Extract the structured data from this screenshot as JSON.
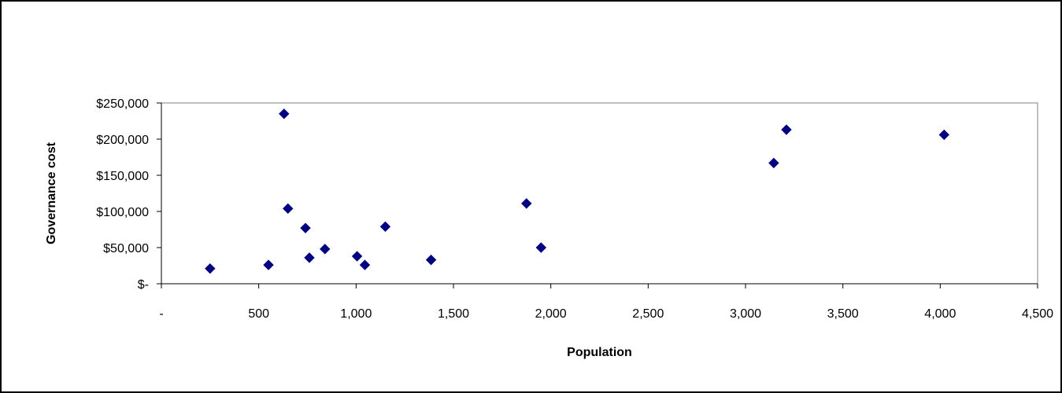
{
  "chart_data": {
    "type": "scatter",
    "xlabel": "Population",
    "ylabel": "Governance cost",
    "xlim": [
      0,
      4500
    ],
    "ylim": [
      0,
      250000
    ],
    "x_ticks": [
      0,
      500,
      1000,
      1500,
      2000,
      2500,
      3000,
      3500,
      4000,
      4500
    ],
    "x_tick_labels": [
      "-",
      "500",
      "1,000",
      "1,500",
      "2,000",
      "2,500",
      "3,000",
      "3,500",
      "4,000",
      "4,500"
    ],
    "y_ticks": [
      0,
      50000,
      100000,
      150000,
      200000,
      250000
    ],
    "y_tick_labels": [
      "$-",
      "$50,000",
      "$100,000",
      "$150,000",
      "$200,000",
      "$250,000"
    ],
    "grid": false,
    "legend": "none",
    "marker": "diamond",
    "marker_color": "#000080",
    "points": [
      {
        "x": 250,
        "y": 21000
      },
      {
        "x": 550,
        "y": 26000
      },
      {
        "x": 630,
        "y": 235000
      },
      {
        "x": 650,
        "y": 104000
      },
      {
        "x": 740,
        "y": 77000
      },
      {
        "x": 760,
        "y": 36000
      },
      {
        "x": 840,
        "y": 48000
      },
      {
        "x": 1005,
        "y": 38000
      },
      {
        "x": 1045,
        "y": 26000
      },
      {
        "x": 1150,
        "y": 79000
      },
      {
        "x": 1385,
        "y": 33000
      },
      {
        "x": 1875,
        "y": 111000
      },
      {
        "x": 1950,
        "y": 50000
      },
      {
        "x": 3145,
        "y": 167000
      },
      {
        "x": 3210,
        "y": 213000
      },
      {
        "x": 4020,
        "y": 206000
      }
    ]
  }
}
